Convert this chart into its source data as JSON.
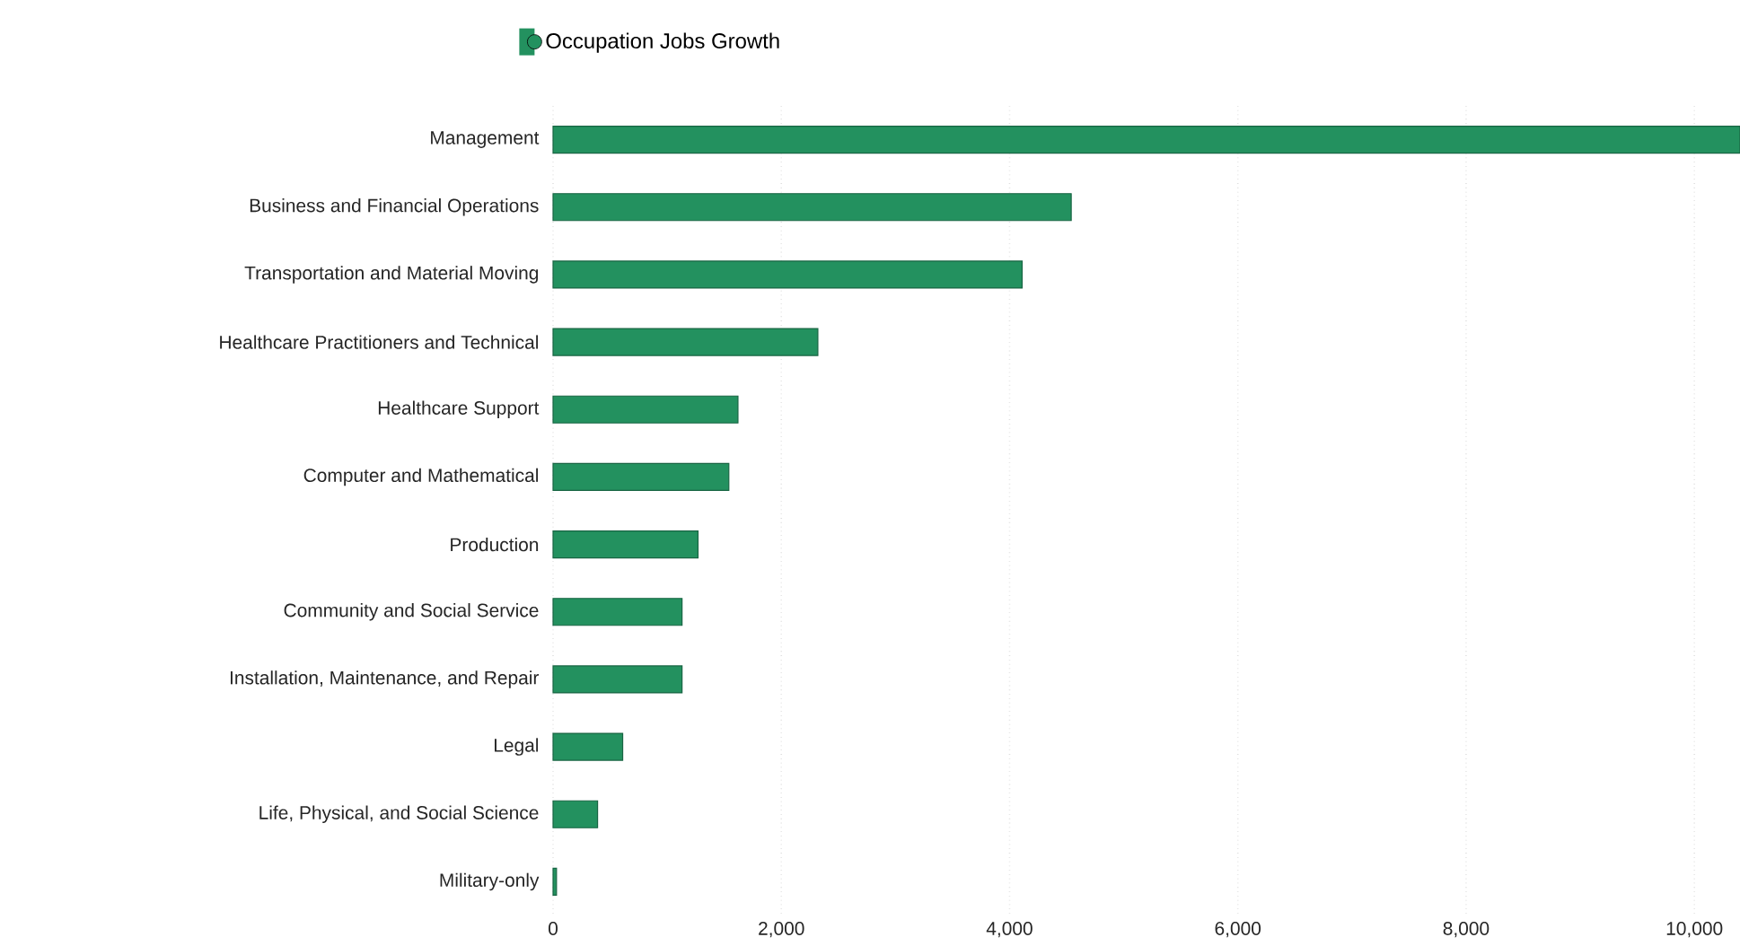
{
  "chart_data": {
    "type": "bar",
    "orientation": "horizontal",
    "categories": [
      "Management",
      "Business and Financial Operations",
      "Transportation and Material Moving",
      "Healthcare Practitioners and Technical",
      "Healthcare Support",
      "Computer and Mathematical",
      "Production",
      "Community and Social Service",
      "Installation, Maintenance, and Repair",
      "Legal",
      "Life, Physical, and Social Science",
      "Military-only"
    ],
    "series": [
      {
        "name": "Occupation Jobs Growth",
        "color": "#23915f",
        "values": [
          10400,
          4540,
          4110,
          2320,
          1620,
          1540,
          1270,
          1130,
          1130,
          610,
          390,
          30
        ]
      }
    ],
    "xlim": [
      0,
      10400
    ],
    "xticks": [
      0,
      {
        "value": 2000,
        "label": "2,000"
      },
      {
        "value": 4000,
        "label": "4,000"
      },
      {
        "value": 6000,
        "label": "6,000"
      },
      {
        "value": 8000,
        "label": "8,000"
      },
      {
        "value": 10000,
        "label": "10,000"
      }
    ],
    "grid": "x",
    "legend": "top",
    "marker": "circle"
  }
}
